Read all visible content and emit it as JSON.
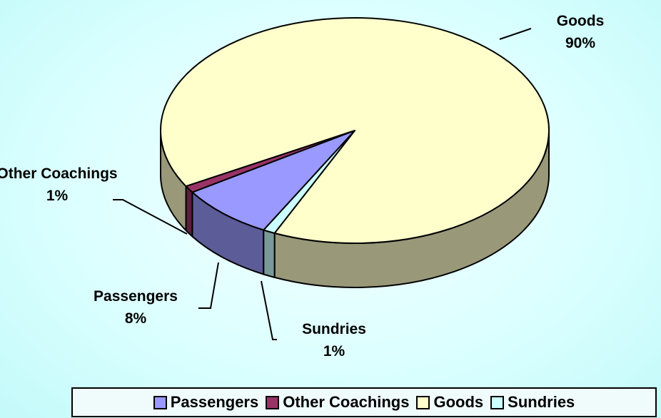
{
  "chart_data": {
    "type": "pie",
    "categories": [
      "Passengers",
      "Other Coachings",
      "Goods",
      "Sundries"
    ],
    "values": [
      8,
      1,
      90,
      1
    ],
    "value_labels": [
      "8%",
      "1%",
      "90%",
      "1%"
    ],
    "colors": [
      "#9999ff",
      "#993366",
      "#ffffcc",
      "#ccffff"
    ],
    "legend": "bottom"
  }
}
